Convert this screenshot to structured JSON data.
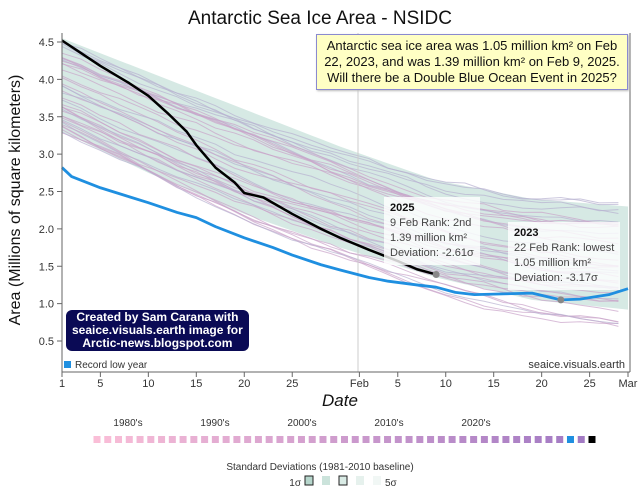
{
  "chart_data": {
    "type": "line",
    "title": "Antarctic Sea Ice Area - NSIDC",
    "xlabel": "Date",
    "ylabel": "Area (Millions of square kilometers)",
    "ylim": [
      0.0,
      4.6
    ],
    "xlim": [
      1,
      60
    ],
    "x_unit": "day of year",
    "x_ticks": [
      {
        "day": 1,
        "label": "1"
      },
      {
        "day": 5,
        "label": "5"
      },
      {
        "day": 10,
        "label": "10"
      },
      {
        "day": 15,
        "label": "15"
      },
      {
        "day": 20,
        "label": "20"
      },
      {
        "day": 25,
        "label": "25"
      },
      {
        "day": 32,
        "label": "Feb"
      },
      {
        "day": 36,
        "label": "5"
      },
      {
        "day": 41,
        "label": "10"
      },
      {
        "day": 46,
        "label": "15"
      },
      {
        "day": 51,
        "label": "20"
      },
      {
        "day": 56,
        "label": "25"
      },
      {
        "day": 60,
        "label": "Mar"
      }
    ],
    "y_ticks": [
      "0.5",
      "1.0",
      "1.5",
      "2.0",
      "2.5",
      "3.0",
      "3.5",
      "4.0",
      "4.5"
    ],
    "y_tick_values": [
      0.5,
      1.0,
      1.5,
      2.0,
      2.5,
      3.0,
      3.5,
      4.0,
      4.5
    ],
    "series": [
      {
        "name": "2025",
        "color": "#000000",
        "x": [
          1,
          3,
          5,
          8,
          10,
          12,
          14,
          15,
          17,
          19,
          20,
          22,
          25,
          28,
          30,
          33,
          36,
          38,
          40
        ],
        "y": [
          4.52,
          4.35,
          4.18,
          3.95,
          3.78,
          3.55,
          3.3,
          3.12,
          2.82,
          2.62,
          2.48,
          2.42,
          2.2,
          2.0,
          1.88,
          1.72,
          1.57,
          1.46,
          1.39
        ]
      },
      {
        "name": "2023",
        "color": "#1f8fe0",
        "x": [
          1,
          2,
          5,
          8,
          10,
          13,
          15,
          17,
          20,
          23,
          25,
          28,
          30,
          33,
          35,
          38,
          40,
          42,
          44,
          47,
          50,
          53,
          55,
          58,
          60
        ],
        "y": [
          2.82,
          2.7,
          2.55,
          2.43,
          2.35,
          2.22,
          2.15,
          2.03,
          1.88,
          1.75,
          1.65,
          1.52,
          1.45,
          1.35,
          1.3,
          1.25,
          1.22,
          1.15,
          1.12,
          1.13,
          1.14,
          1.05,
          1.06,
          1.12,
          1.2
        ]
      }
    ],
    "std_band": {
      "x": [
        1,
        10,
        20,
        30,
        40,
        50,
        60
      ],
      "upper": [
        4.55,
        4.1,
        3.6,
        3.1,
        2.65,
        2.4,
        2.3
      ],
      "lower": [
        3.3,
        2.75,
        2.2,
        1.75,
        1.35,
        1.05,
        0.92
      ]
    },
    "markers": [
      {
        "series": "2025",
        "day": 40,
        "value": 1.39
      },
      {
        "series": "2023",
        "day": 53,
        "value": 1.05
      }
    ],
    "legend_item": "Record low year",
    "watermark": "seaice.visuals.earth"
  },
  "note": "Antarctic sea ice area was 1.05 million km² on Feb 22, 2023, and was 1.39 million km² on Feb 9, 2025. Will there be a Double Blue Ocean Event in 2025?",
  "credit": [
    "Created by Sam Carana with",
    "seaice.visuals.earth image for",
    "Arctic-news.blogspot.com"
  ],
  "tooltips": [
    {
      "year": "2025",
      "line1": "9 Feb Rank: 2nd",
      "line2": "1.39 million km²",
      "line3": "Deviation: -2.61σ"
    },
    {
      "year": "2023",
      "line1": "22 Feb Rank: lowest",
      "line2": "1.05 million km²",
      "line3": "Deviation: -3.17σ"
    }
  ],
  "decade_legend": {
    "labels": [
      "1980's",
      "1990's",
      "2000's",
      "2010's",
      "2020's"
    ],
    "years_from": 1979,
    "years_to": 2025,
    "record_year": 2023,
    "current_year": 2025
  },
  "sd_legend": {
    "title": "Standard Deviations (1981-2010 baseline)",
    "low": "1σ",
    "high": "5σ"
  }
}
